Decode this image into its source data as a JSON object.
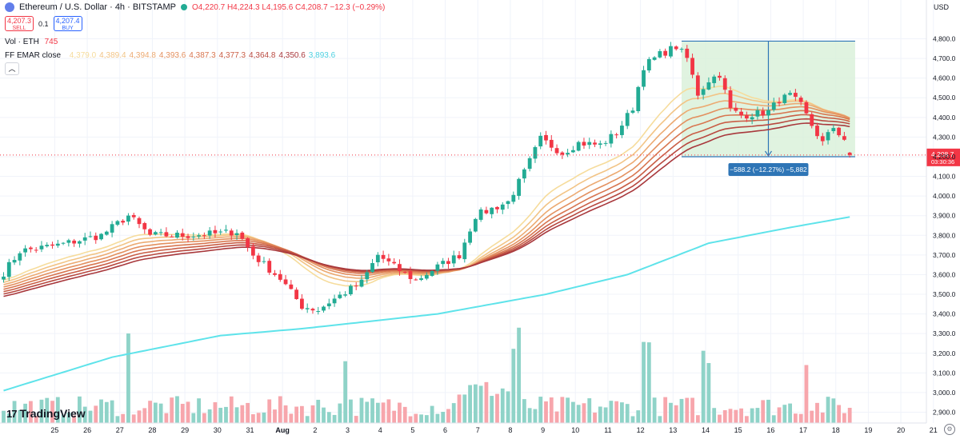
{
  "header": {
    "symbol_title": "Ethereum / U.S. Dollar · 4h · BITSTAMP",
    "open": "O4,220.7",
    "high": "H4,224.3",
    "low": "L4,195.6",
    "close": "C4,208.7",
    "change": "−12.3 (−0.29%)"
  },
  "trade": {
    "sell_price": "4,207.3",
    "sell_label": "SELL",
    "spread": "0.1",
    "buy_price": "4,207.4",
    "buy_label": "BUY"
  },
  "volume_legend": {
    "label": "Vol · ETH",
    "value": "745"
  },
  "ema_legend": {
    "label": "FF EMAR close",
    "values": [
      "4,379.0",
      "4,389.4",
      "4,394.8",
      "4,393.6",
      "4,387.3",
      "4,377.3",
      "4,364.8",
      "4,350.6",
      "3,893.6"
    ],
    "colors": [
      "#f6dc9c",
      "#f2c486",
      "#ecaa72",
      "#e3905f",
      "#d87650",
      "#c95e46",
      "#b84940",
      "#a8383c",
      "#4dd0e1"
    ]
  },
  "currency_label": "USD",
  "collapse_icon": "chevron-up-icon",
  "brand": {
    "logo_mark": "17",
    "name": "TradingView"
  },
  "colors": {
    "up": "#22ab94",
    "down": "#f23645",
    "up_vol": "#8fd3c8",
    "down_vol": "#f7a6ac",
    "ema200": "#5ee3ea",
    "range_fill": "#d8f0d8",
    "range_line": "#2e75b6"
  },
  "chart_data": {
    "type": "candlestick",
    "timeframe": "4h",
    "y_axis": {
      "ticks": [
        2900,
        3000,
        3100,
        3200,
        3300,
        3400,
        3500,
        3600,
        3700,
        3800,
        3900,
        4000,
        4100,
        4200,
        4300,
        4400,
        4500,
        4600,
        4700,
        4800
      ],
      "tick_labels": [
        "2,900.0",
        "3,000.0",
        "3,100.0",
        "3,200.0",
        "3,300.0",
        "3,400.0",
        "3,500.0",
        "3,600.0",
        "3,700.0",
        "3,800.0",
        "3,900.0",
        "4,000.0",
        "4,100.0",
        "4,200.0",
        "4,300.0",
        "4,400.0",
        "4,500.0",
        "4,600.0",
        "4,700.0",
        "4,800.0"
      ],
      "range": [
        2850,
        4880
      ]
    },
    "x_axis": {
      "ticks": [
        {
          "label": "25",
          "bar": 5
        },
        {
          "label": "26",
          "bar": 11
        },
        {
          "label": "27",
          "bar": 17
        },
        {
          "label": "28",
          "bar": 23
        },
        {
          "label": "29",
          "bar": 29
        },
        {
          "label": "30",
          "bar": 35
        },
        {
          "label": "31",
          "bar": 41
        },
        {
          "label": "Aug",
          "bar": 47,
          "bold": true
        },
        {
          "label": "2",
          "bar": 53
        },
        {
          "label": "3",
          "bar": 59
        },
        {
          "label": "4",
          "bar": 65
        },
        {
          "label": "5",
          "bar": 71
        },
        {
          "label": "6",
          "bar": 77
        },
        {
          "label": "7",
          "bar": 83
        },
        {
          "label": "8",
          "bar": 89
        },
        {
          "label": "9",
          "bar": 95
        },
        {
          "label": "10",
          "bar": 101
        },
        {
          "label": "11",
          "bar": 107
        },
        {
          "label": "12",
          "bar": 113
        },
        {
          "label": "13",
          "bar": 119
        },
        {
          "label": "14",
          "bar": 125
        },
        {
          "label": "15",
          "bar": 131
        },
        {
          "label": "16",
          "bar": 137
        },
        {
          "label": "17",
          "bar": 143
        },
        {
          "label": "18",
          "bar": 149
        },
        {
          "label": "19",
          "bar": 155
        },
        {
          "label": "20",
          "bar": 161
        },
        {
          "label": "21",
          "bar": 167
        }
      ]
    },
    "close_keyframes": [
      [
        0,
        3610
      ],
      [
        3,
        3720
      ],
      [
        10,
        3750
      ],
      [
        18,
        3800
      ],
      [
        23,
        3900
      ],
      [
        27,
        3800
      ],
      [
        34,
        3800
      ],
      [
        40,
        3810
      ],
      [
        43,
        3820
      ],
      [
        46,
        3700
      ],
      [
        51,
        3580
      ],
      [
        55,
        3440
      ],
      [
        58,
        3420
      ],
      [
        60,
        3460
      ],
      [
        66,
        3560
      ],
      [
        69,
        3700
      ],
      [
        72,
        3640
      ],
      [
        76,
        3570
      ],
      [
        80,
        3640
      ],
      [
        84,
        3700
      ],
      [
        87,
        3900
      ],
      [
        93,
        3970
      ],
      [
        96,
        4120
      ],
      [
        99,
        4290
      ],
      [
        103,
        4220
      ],
      [
        106,
        4270
      ],
      [
        110,
        4260
      ],
      [
        113,
        4320
      ],
      [
        116,
        4450
      ],
      [
        118,
        4660
      ],
      [
        121,
        4720
      ],
      [
        124,
        4760
      ],
      [
        126,
        4700
      ],
      [
        128,
        4520
      ],
      [
        130,
        4590
      ],
      [
        132,
        4620
      ],
      [
        134,
        4440
      ],
      [
        136,
        4410
      ],
      [
        139,
        4420
      ],
      [
        141,
        4430
      ],
      [
        143,
        4490
      ],
      [
        145,
        4510
      ],
      [
        147,
        4460
      ],
      [
        149,
        4360
      ],
      [
        151,
        4270
      ],
      [
        153,
        4350
      ],
      [
        155,
        4290
      ],
      [
        156,
        4208.7
      ]
    ],
    "volume_scale_max": 1000,
    "ema200_keyframes": [
      [
        0,
        3010
      ],
      [
        20,
        3180
      ],
      [
        40,
        3290
      ],
      [
        55,
        3325
      ],
      [
        80,
        3400
      ],
      [
        100,
        3500
      ],
      [
        115,
        3600
      ],
      [
        130,
        3760
      ],
      [
        145,
        3840
      ],
      [
        156,
        3893.6
      ]
    ],
    "current_price": {
      "value": 4208.7,
      "label": "4,208.7",
      "countdown": "03:30:36"
    },
    "measure": {
      "start_bar": 125,
      "end_bar": 157,
      "top": 4788,
      "bottom": 4200,
      "label": "−588.2 (−12.27%) −5,882"
    }
  }
}
